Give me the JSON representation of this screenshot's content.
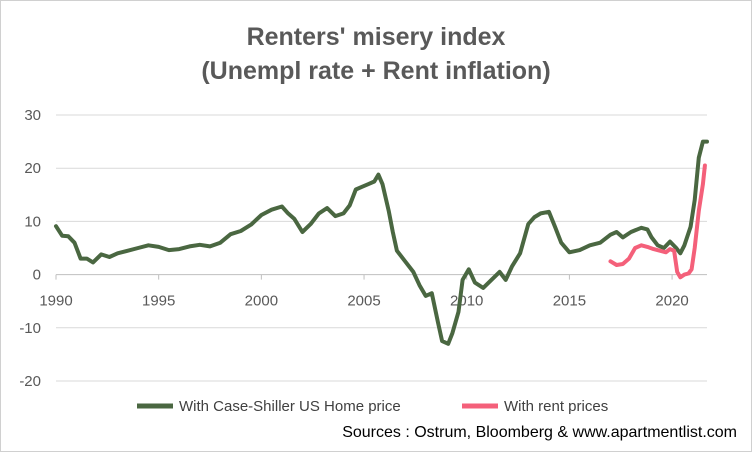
{
  "chart_data": {
    "type": "line",
    "title": "Renters' misery index",
    "subtitle": "(Unempl rate +  Rent inflation)",
    "xlabel": "",
    "ylabel": "",
    "xlim": [
      1990,
      2021.7
    ],
    "ylim": [
      -20,
      30
    ],
    "x_ticks": [
      "1990",
      "1995",
      "2000",
      "2005",
      "2010",
      "2015",
      "2020"
    ],
    "y_ticks": [
      "30",
      "20",
      "10",
      "0",
      "-10",
      "-20"
    ],
    "grid": "horizontal",
    "legend": "bottom",
    "source": "Sources : Ostrum, Bloomberg & www.apartmentlist.com",
    "series": [
      {
        "name": "With Case-Shiller US Home price",
        "color": "#4a6741",
        "points": [
          [
            1990.0,
            9.1
          ],
          [
            1990.3,
            7.3
          ],
          [
            1990.6,
            7.2
          ],
          [
            1990.9,
            6.0
          ],
          [
            1991.2,
            3.0
          ],
          [
            1991.5,
            3.0
          ],
          [
            1991.8,
            2.3
          ],
          [
            1992.2,
            3.8
          ],
          [
            1992.6,
            3.3
          ],
          [
            1993.0,
            4.0
          ],
          [
            1993.5,
            4.5
          ],
          [
            1994.0,
            5.0
          ],
          [
            1994.5,
            5.5
          ],
          [
            1995.0,
            5.2
          ],
          [
            1995.5,
            4.6
          ],
          [
            1996.0,
            4.8
          ],
          [
            1996.5,
            5.3
          ],
          [
            1997.0,
            5.6
          ],
          [
            1997.5,
            5.3
          ],
          [
            1998.0,
            6.0
          ],
          [
            1998.5,
            7.6
          ],
          [
            1999.0,
            8.2
          ],
          [
            1999.5,
            9.4
          ],
          [
            2000.0,
            11.2
          ],
          [
            2000.5,
            12.2
          ],
          [
            2001.0,
            12.8
          ],
          [
            2001.3,
            11.5
          ],
          [
            2001.6,
            10.5
          ],
          [
            2002.0,
            8.0
          ],
          [
            2002.4,
            9.5
          ],
          [
            2002.8,
            11.5
          ],
          [
            2003.2,
            12.5
          ],
          [
            2003.6,
            11.0
          ],
          [
            2004.0,
            11.5
          ],
          [
            2004.3,
            13.0
          ],
          [
            2004.6,
            16.0
          ],
          [
            2004.9,
            16.5
          ],
          [
            2005.2,
            17.0
          ],
          [
            2005.5,
            17.5
          ],
          [
            2005.7,
            18.8
          ],
          [
            2005.9,
            17.0
          ],
          [
            2006.2,
            12.0
          ],
          [
            2006.4,
            8.0
          ],
          [
            2006.6,
            4.5
          ],
          [
            2007.0,
            2.5
          ],
          [
            2007.4,
            0.5
          ],
          [
            2007.7,
            -2.0
          ],
          [
            2008.0,
            -4.0
          ],
          [
            2008.3,
            -3.5
          ],
          [
            2008.6,
            -9.0
          ],
          [
            2008.8,
            -12.5
          ],
          [
            2009.1,
            -13.0
          ],
          [
            2009.3,
            -11.0
          ],
          [
            2009.6,
            -7.0
          ],
          [
            2009.8,
            -1.0
          ],
          [
            2010.1,
            1.0
          ],
          [
            2010.4,
            -1.5
          ],
          [
            2010.8,
            -2.5
          ],
          [
            2011.2,
            -1.0
          ],
          [
            2011.6,
            0.5
          ],
          [
            2011.9,
            -1.0
          ],
          [
            2012.2,
            1.5
          ],
          [
            2012.6,
            4.0
          ],
          [
            2013.0,
            9.5
          ],
          [
            2013.3,
            10.8
          ],
          [
            2013.6,
            11.5
          ],
          [
            2014.0,
            11.8
          ],
          [
            2014.3,
            9.0
          ],
          [
            2014.6,
            6.0
          ],
          [
            2015.0,
            4.2
          ],
          [
            2015.5,
            4.6
          ],
          [
            2016.0,
            5.5
          ],
          [
            2016.5,
            6.0
          ],
          [
            2017.0,
            7.5
          ],
          [
            2017.3,
            8.0
          ],
          [
            2017.6,
            7.0
          ],
          [
            2018.0,
            8.0
          ],
          [
            2018.5,
            8.8
          ],
          [
            2018.8,
            8.5
          ],
          [
            2019.0,
            7.0
          ],
          [
            2019.3,
            5.5
          ],
          [
            2019.6,
            5.0
          ],
          [
            2019.9,
            6.2
          ],
          [
            2020.2,
            5.0
          ],
          [
            2020.4,
            4.0
          ],
          [
            2020.6,
            5.5
          ],
          [
            2020.9,
            9.0
          ],
          [
            2021.1,
            14.0
          ],
          [
            2021.3,
            22.0
          ],
          [
            2021.5,
            25.0
          ],
          [
            2021.7,
            25.0
          ]
        ]
      },
      {
        "name": "With rent prices",
        "color": "#f4607a",
        "points": [
          [
            2017.0,
            2.5
          ],
          [
            2017.3,
            1.8
          ],
          [
            2017.6,
            2.0
          ],
          [
            2017.9,
            3.0
          ],
          [
            2018.2,
            5.0
          ],
          [
            2018.5,
            5.5
          ],
          [
            2018.8,
            5.2
          ],
          [
            2019.1,
            4.8
          ],
          [
            2019.4,
            4.5
          ],
          [
            2019.7,
            4.2
          ],
          [
            2019.9,
            4.8
          ],
          [
            2020.1,
            4.5
          ],
          [
            2020.25,
            0.5
          ],
          [
            2020.4,
            -0.5
          ],
          [
            2020.6,
            0.0
          ],
          [
            2020.8,
            0.2
          ],
          [
            2020.95,
            1.0
          ],
          [
            2021.1,
            5.0
          ],
          [
            2021.3,
            12.0
          ],
          [
            2021.5,
            17.0
          ],
          [
            2021.6,
            20.5
          ]
        ]
      }
    ]
  }
}
